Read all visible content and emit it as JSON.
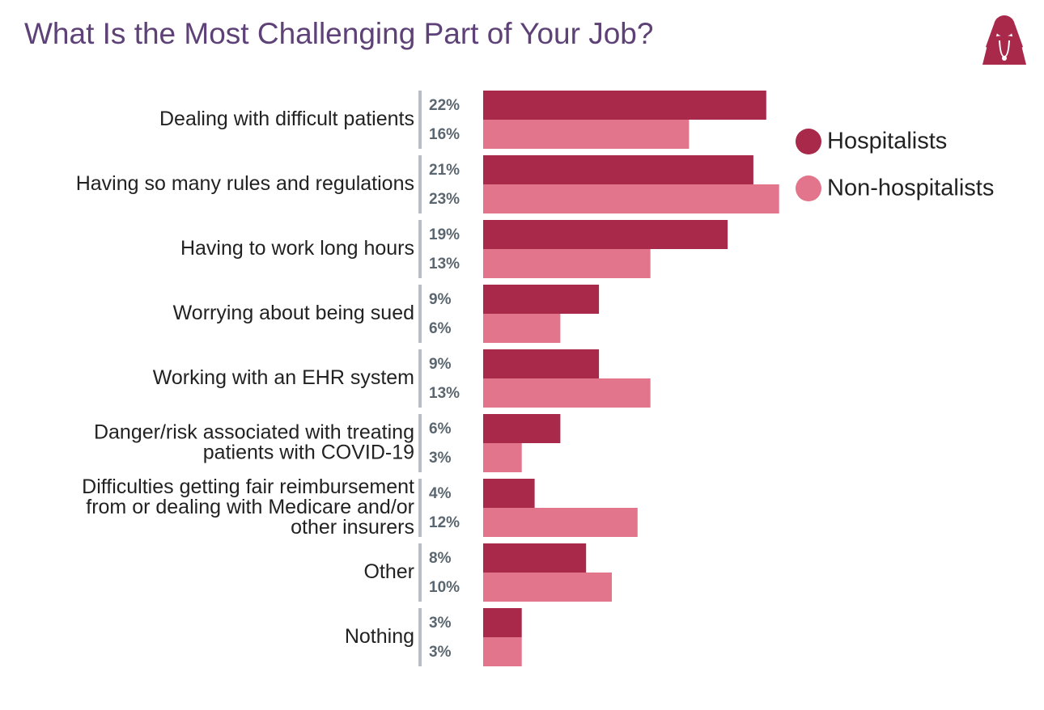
{
  "chart_data": {
    "type": "hbar",
    "title": "What Is the Most Challenging Part of Your Job?",
    "categories": [
      "Dealing with difficult patients",
      "Having so many rules and regulations",
      "Having to work long hours",
      "Worrying about being sued",
      "Working with an EHR system",
      "Danger/risk associated with treating\npatients with COVID-19",
      "Difficulties getting fair reimbursement\nfrom or dealing with Medicare and/or\nother insurers",
      "Other",
      "Nothing"
    ],
    "series": [
      {
        "name": "Hospitalists",
        "color": "#a8294a",
        "values": [
          22,
          21,
          19,
          9,
          9,
          6,
          4,
          8,
          3
        ],
        "value_labels": [
          "22%",
          "21%",
          "19%",
          "9%",
          "9%",
          "6%",
          "4%",
          "8%",
          "3%"
        ]
      },
      {
        "name": "Non-hospitalists",
        "color": "#e2758c",
        "values": [
          16,
          23,
          13,
          6,
          13,
          3,
          12,
          10,
          3
        ],
        "value_labels": [
          "16%",
          "23%",
          "13%",
          "6%",
          "13%",
          "3%",
          "12%",
          "10%",
          "3%"
        ]
      }
    ]
  }
}
